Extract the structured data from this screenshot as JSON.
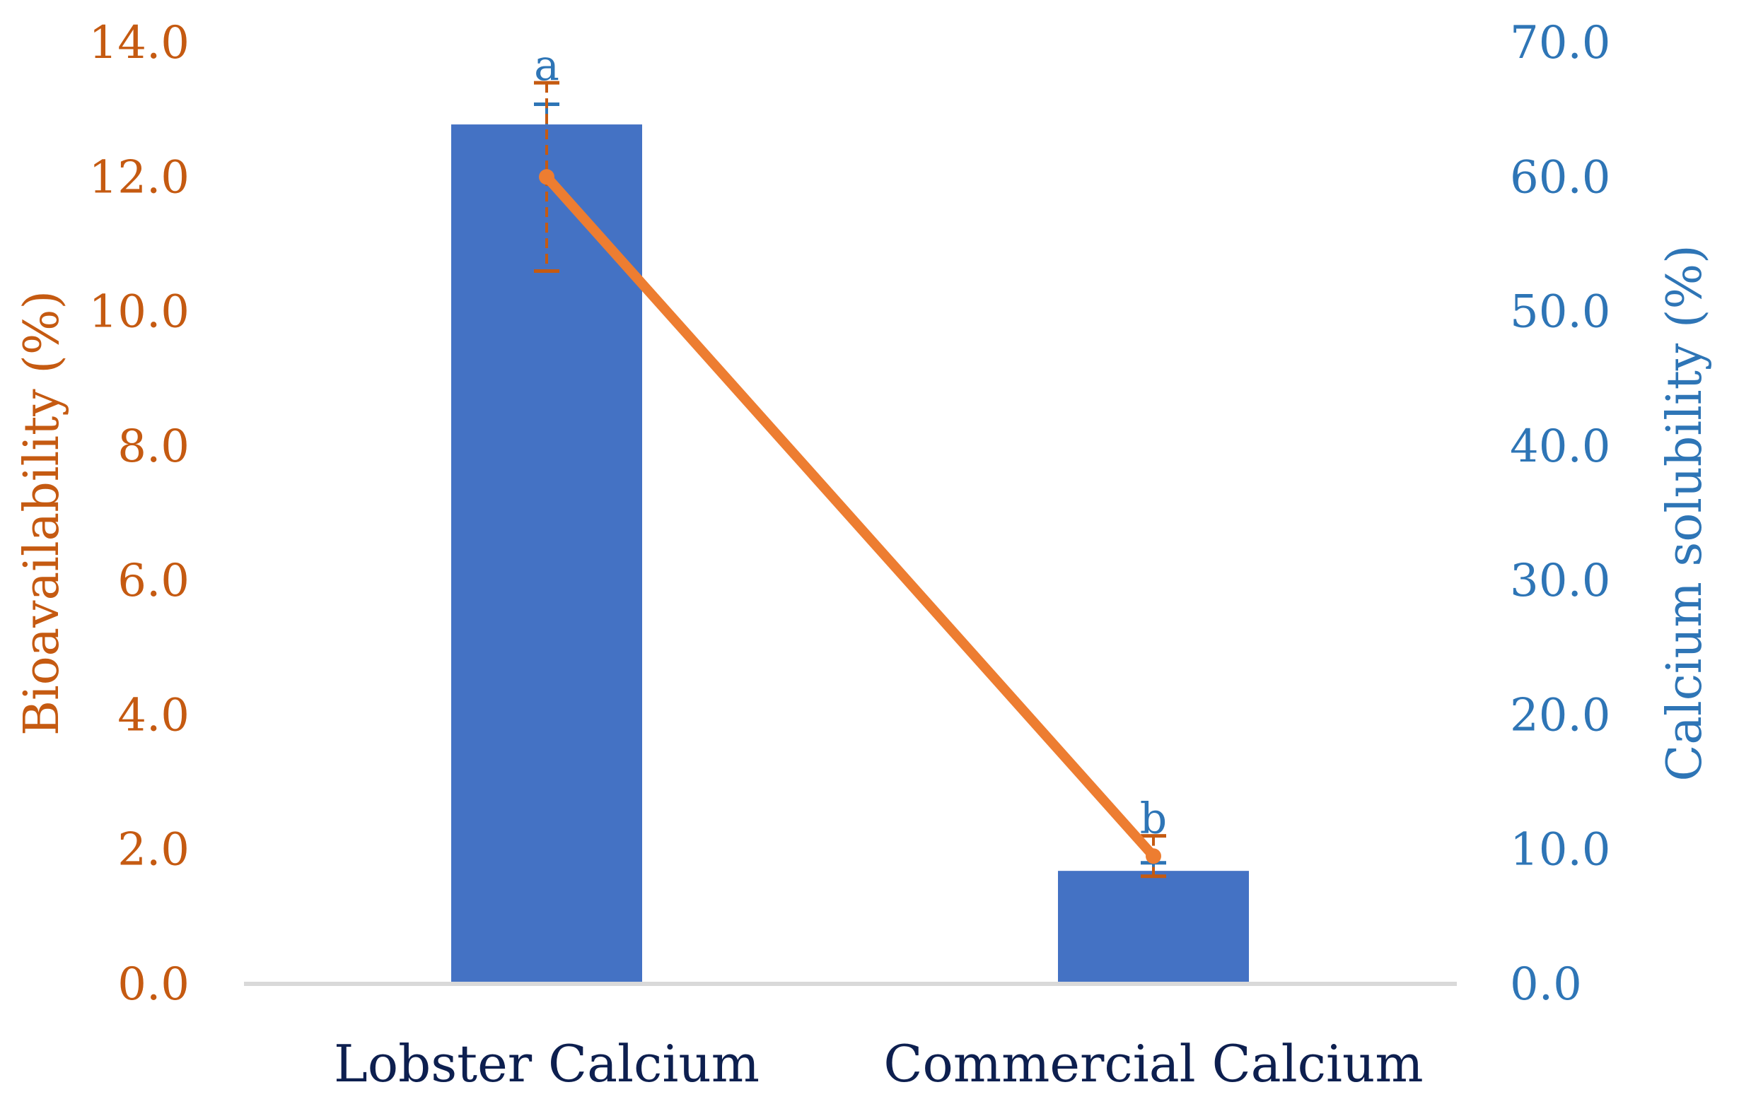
{
  "chart_data": {
    "type": "bar",
    "categories": [
      "Lobster Calcium",
      "Commercial Calcium"
    ],
    "series": [
      {
        "name": "",
        "kind": "bar",
        "axis": "right",
        "values": [
          63.9,
          8.4
        ],
        "error": [
          1.5,
          0.6
        ],
        "color": "#4472c4"
      },
      {
        "name": "",
        "kind": "line",
        "axis": "left",
        "values": [
          12.0,
          1.9
        ],
        "error": [
          1.4,
          0.3
        ],
        "color": "#ed7d31"
      }
    ],
    "significance_labels": [
      "a",
      "b"
    ],
    "ylabel_left": "Bioavailability (%)",
    "ylabel_right": "Calcium solubility (%)",
    "ylim_left": [
      0,
      14
    ],
    "ylim_right": [
      0,
      70
    ],
    "yticks_left": [
      "0.0",
      "2.0",
      "4.0",
      "6.0",
      "8.0",
      "10.0",
      "12.0",
      "14.0"
    ],
    "yticks_right": [
      "0.0",
      "10.0",
      "20.0",
      "30.0",
      "40.0",
      "50.0",
      "60.0",
      "70.0"
    ],
    "grid": false,
    "colors": {
      "left_axis": "#c55a11",
      "right_axis": "#2e75b6",
      "category_text": "#0d1f4f",
      "baseline": "#d9d9d9"
    }
  }
}
